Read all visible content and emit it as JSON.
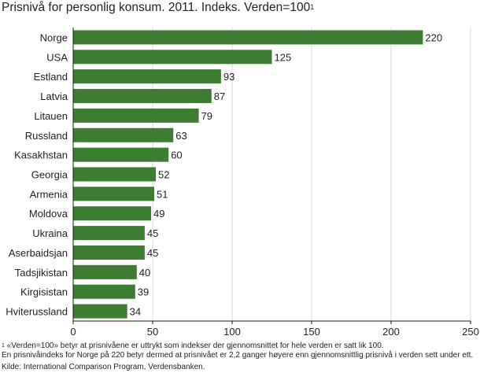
{
  "chart_data": {
    "type": "bar",
    "orientation": "horizontal",
    "title": "Prisnivå for personlig konsum. 2011. Indeks. Verden=100",
    "title_sup": "1",
    "categories": [
      "Norge",
      "USA",
      "Estland",
      "Latvia",
      "Litauen",
      "Russland",
      "Kasakhstan",
      "Georgia",
      "Armenia",
      "Moldova",
      "Ukraina",
      "Aserbaidsjan",
      "Tadsjikistan",
      "Kirgisistan",
      "Hviterussland"
    ],
    "values": [
      220,
      125,
      93,
      87,
      79,
      63,
      60,
      52,
      51,
      49,
      45,
      45,
      40,
      39,
      34
    ],
    "xlim": [
      0,
      250
    ],
    "xticks": [
      0,
      50,
      100,
      150,
      200,
      250
    ],
    "grid": "vertical",
    "legend": "none",
    "bar_color": "#3d7d32"
  },
  "footnotes": {
    "note1_marker": "1",
    "note1_line1": " «Verden=100» betyr at prisnivåene er uttrykt som indekser der gjennomsnittet for hele verden er satt lik 100.",
    "note1_line2": "En prisnivåindeks for Norge på 220 betyr dermed at prisnivået er 2,2 ganger høyere enn gjennomsnittlig prisnivå i verden sett under ett.",
    "source": "Kilde: International Comparison Program, Verdensbanken."
  }
}
